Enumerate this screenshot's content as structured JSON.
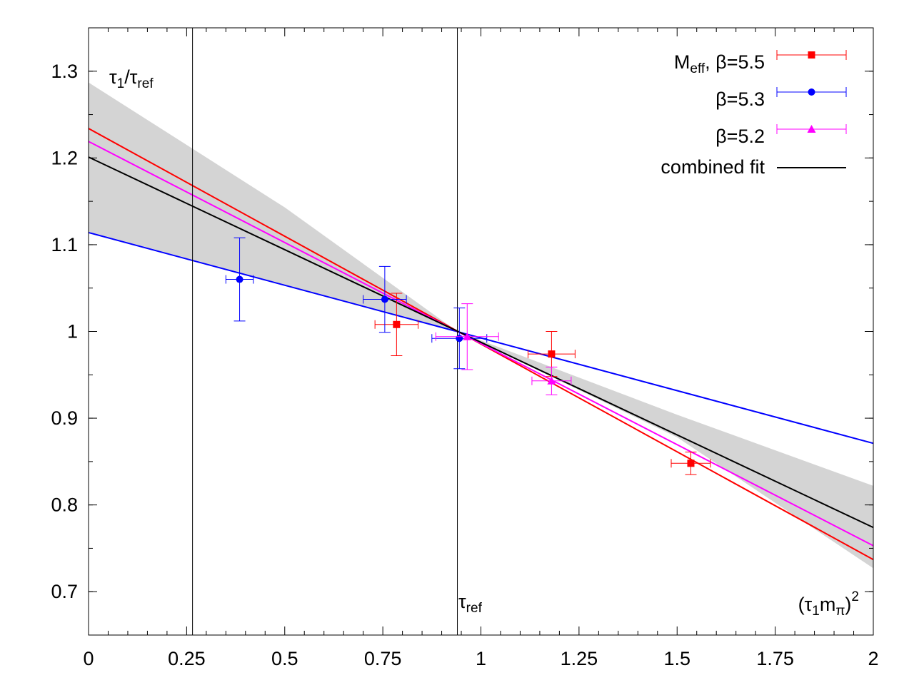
{
  "chart_data": {
    "type": "scatter",
    "title": "",
    "xlabel": "(τ1mπ)2",
    "ylabel": "τ1/τref",
    "xlim": [
      0,
      2
    ],
    "ylim": [
      0.65,
      1.35
    ],
    "x_ticks": [
      0,
      0.25,
      0.5,
      0.75,
      1,
      1.25,
      1.5,
      1.75,
      2
    ],
    "x_tick_labels": [
      "0",
      "0.25",
      "0.5",
      "0.75",
      "1",
      "1.25",
      "1.5",
      "1.75",
      "2"
    ],
    "y_ticks": [
      0.7,
      0.8,
      0.9,
      1.0,
      1.1,
      1.2,
      1.3
    ],
    "y_tick_labels": [
      "0.7",
      "0.8",
      "0.9",
      "1",
      "1.1",
      "1.2",
      "1.3"
    ],
    "axis_labels": {
      "y_main": "τ",
      "y_sub1": "1",
      "y_slash": "/τ",
      "y_sub2": "ref",
      "x_open": "(τ",
      "x_sub1": "1",
      "x_m": "m",
      "x_sub2": "π",
      "x_close": ")",
      "x_sup": "2"
    },
    "vertical_lines": [
      {
        "x": 0.265,
        "label_main": "",
        "label_sub": ""
      },
      {
        "x": 0.94,
        "label_main": "τ",
        "label_sub": "ref"
      }
    ],
    "series": [
      {
        "name": "Meff, β=5.5",
        "label_main": "M",
        "label_sub": "eff",
        "label_rest": ", β=5.5",
        "color": "#ff0000",
        "marker": "square",
        "points": [
          {
            "x": 0.785,
            "y": 1.008,
            "xerr": 0.055,
            "yerr": 0.036
          },
          {
            "x": 1.18,
            "y": 0.974,
            "xerr": 0.06,
            "yerr": 0.026
          },
          {
            "x": 1.535,
            "y": 0.848,
            "xerr": 0.05,
            "yerr": 0.013
          }
        ],
        "fit_line": [
          [
            0,
            1.234
          ],
          [
            2,
            0.737
          ]
        ]
      },
      {
        "name": "β=5.3",
        "label_main": "β=5.3",
        "label_sub": "",
        "label_rest": "",
        "color": "#0000ff",
        "marker": "circle",
        "points": [
          {
            "x": 0.385,
            "y": 1.06,
            "xerr": 0.035,
            "yerr": 0.048
          },
          {
            "x": 0.755,
            "y": 1.037,
            "xerr": 0.055,
            "yerr": 0.038
          },
          {
            "x": 0.945,
            "y": 0.992,
            "xerr": 0.07,
            "yerr": 0.035
          }
        ],
        "fit_line": [
          [
            0,
            1.114
          ],
          [
            2,
            0.871
          ]
        ]
      },
      {
        "name": "β=5.2",
        "label_main": "β=5.2",
        "label_sub": "",
        "label_rest": "",
        "color": "#ff00ff",
        "marker": "triangle",
        "points": [
          {
            "x": 0.965,
            "y": 0.994,
            "xerr": 0.08,
            "yerr": 0.038
          },
          {
            "x": 1.18,
            "y": 0.943,
            "xerr": 0.05,
            "yerr": 0.016
          }
        ],
        "fit_line": [
          [
            0,
            1.219
          ],
          [
            2,
            0.753
          ]
        ]
      },
      {
        "name": "combined fit",
        "label_main": "combined fit",
        "label_sub": "",
        "label_rest": "",
        "color": "#000000",
        "marker": "none",
        "points": [],
        "fit_line": [
          [
            0,
            1.201
          ],
          [
            2,
            0.774
          ]
        ],
        "band": {
          "x": [
            0,
            0.5,
            0.94,
            1.5,
            2
          ],
          "upper": [
            1.287,
            1.143,
            1.0,
            0.904,
            0.822
          ],
          "lower": [
            1.115,
            1.054,
            1.0,
            0.878,
            0.727
          ]
        }
      }
    ],
    "legend_position": "top-right",
    "grid": false
  }
}
